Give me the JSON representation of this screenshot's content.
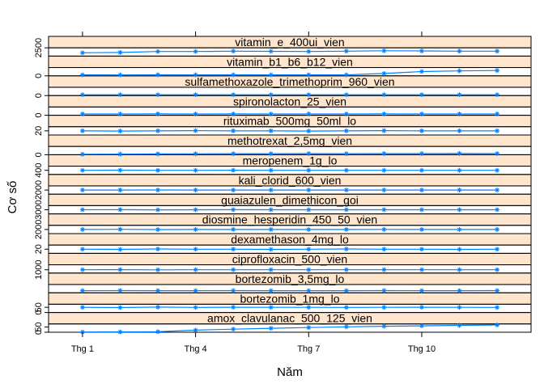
{
  "chart_data": {
    "type": "line",
    "title": "",
    "xlabel": "Năm",
    "ylabel": "Cơ số",
    "x": [
      1,
      2,
      3,
      4,
      5,
      6,
      7,
      8,
      9,
      10,
      11,
      12
    ],
    "x_tick_values": [
      1,
      4,
      7,
      10
    ],
    "x_tick_labels": [
      "Thg 1",
      "Thg 4",
      "Thg 7",
      "Thg 10"
    ],
    "xlim": [
      0.1,
      12.9
    ],
    "line_color": "#0080ff",
    "strip_color": "#ffe5cc",
    "grid": false,
    "panels": [
      {
        "name": "amox_clavulanac_500_125_vien",
        "ylim": [
          0,
          80
        ],
        "y_ticks": [
          0,
          50
        ],
        "values": [
          2,
          3,
          5,
          20,
          30,
          38,
          45,
          52,
          58,
          62,
          66,
          70
        ]
      },
      {
        "name": "bortezomib_1mg_lo",
        "ylim": [
          0,
          80
        ],
        "y_ticks": [
          0,
          50
        ],
        "values": [
          50,
          48,
          52,
          49,
          51,
          50,
          50,
          49,
          50,
          51,
          50,
          49
        ]
      },
      {
        "name": "bortezomib_3,5mg_lo",
        "ylim": [
          0,
          80
        ],
        "y_ticks": [],
        "values": [
          20,
          21,
          20,
          20,
          21,
          20,
          20,
          20,
          21,
          20,
          20,
          21
        ]
      },
      {
        "name": "ciprofloxacin_500_vien",
        "ylim": [
          0,
          2500
        ],
        "y_ticks": [
          1000
        ],
        "values": [
          1000,
          1020,
          980,
          1000,
          1010,
          1000,
          990,
          1000,
          1010,
          1000,
          1000,
          1005
        ]
      },
      {
        "name": "dexamethason_4mg_lo",
        "ylim": [
          0,
          40
        ],
        "y_ticks": [
          20
        ],
        "values": [
          20,
          19,
          21,
          20,
          20,
          19,
          20,
          21,
          20,
          20,
          19,
          20
        ]
      },
      {
        "name": "diosmine_hesperidin_450_50_vien",
        "ylim": [
          0,
          4000
        ],
        "y_ticks": [
          2000
        ],
        "values": [
          2000,
          2050,
          1950,
          2000,
          2010,
          2000,
          1990,
          2000,
          2020,
          2000,
          1980,
          2000
        ]
      },
      {
        "name": "guaiazulen_dimethicon_goi",
        "ylim": [
          0,
          6000
        ],
        "y_ticks": [
          3000
        ],
        "values": [
          3000,
          3050,
          2950,
          3000,
          3020,
          3000,
          2990,
          3000,
          3010,
          3000,
          3000,
          3000
        ]
      },
      {
        "name": "kali_clorid_600_vien",
        "ylim": [
          0,
          4000
        ],
        "y_ticks": [
          2000
        ],
        "values": [
          2000,
          1980,
          2020,
          2000,
          2000,
          1990,
          2000,
          2010,
          2000,
          2000,
          1990,
          2000
        ]
      },
      {
        "name": "meropenem_1g_lo",
        "ylim": [
          0,
          800
        ],
        "y_ticks": [
          400
        ],
        "values": [
          400,
          410,
          395,
          400,
          405,
          400,
          398,
          400,
          402,
          400,
          400,
          400
        ]
      },
      {
        "name": "methotrexat_2,5mg_vien",
        "ylim": [
          0,
          80
        ],
        "y_ticks": [
          0
        ],
        "values": [
          5,
          6,
          8,
          9,
          10,
          10,
          11,
          10,
          11,
          11,
          12,
          11
        ]
      },
      {
        "name": "rituximab_500mg_50ml_lo",
        "ylim": [
          0,
          40
        ],
        "y_ticks": [
          20
        ],
        "values": [
          20,
          19,
          20,
          21,
          20,
          20,
          19,
          20,
          21,
          20,
          20,
          20
        ]
      },
      {
        "name": "spironolacton_25_vien",
        "ylim": [
          0,
          2500
        ],
        "y_ticks": [
          0
        ],
        "values": [
          400,
          380,
          420,
          400,
          410,
          400,
          390,
          400,
          410,
          400,
          400,
          400
        ]
      },
      {
        "name": "sulfamethoxazole_trimethoprim_960_vien",
        "ylim": [
          0,
          2500
        ],
        "y_ticks": [
          0
        ],
        "values": [
          250,
          250,
          250,
          250,
          250,
          250,
          250,
          250,
          250,
          250,
          250,
          250
        ]
      },
      {
        "name": "vitamin_b1_b6_b12_vien",
        "ylim": [
          0,
          2500
        ],
        "y_ticks": [
          0
        ],
        "values": [
          300,
          280,
          320,
          300,
          310,
          300,
          290,
          300,
          700,
          1300,
          1500,
          1600
        ]
      },
      {
        "name": "vitamin_e_400ui_vien",
        "ylim": [
          0,
          2500
        ],
        "y_ticks": [
          2500
        ],
        "values": [
          1000,
          1100,
          1400,
          1400,
          1500,
          1450,
          1400,
          1500,
          1600,
          1550,
          1500,
          1500
        ]
      }
    ]
  }
}
